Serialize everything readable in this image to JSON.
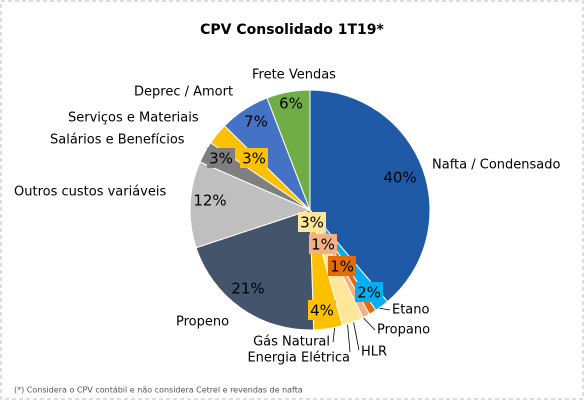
{
  "chart_data": {
    "type": "pie",
    "title": "CPV Consolidado 1T19*",
    "categories": [
      "Nafta / Condensado",
      "Etano",
      "Propano",
      "HLR",
      "Energia Elétrica",
      "Gás Natural",
      "Propeno",
      "Outros custos variáveis",
      "Salários e Benefícios",
      "Serviços e Materiais",
      "Deprec / Amort",
      "Frete Vendas"
    ],
    "values": [
      40,
      2,
      1,
      1,
      3,
      4,
      21,
      12,
      3,
      3,
      7,
      6
    ],
    "value_labels": [
      "40%",
      "2%",
      "1%",
      "1%",
      "3%",
      "4%",
      "21%",
      "12%",
      "3%",
      "3%",
      "7%",
      "6%"
    ],
    "colors": [
      "#1F5AA6",
      "#00B0F0",
      "#E36C09",
      "#F4B183",
      "#FFE699",
      "#FFC000",
      "#44546A",
      "#BFBFBF",
      "#7F7F7F",
      "#FFC000",
      "#4472C4",
      "#70AD47"
    ],
    "footnote": "(*) Considera o CPV contábil e não considera Cetrel e revendas de nafta"
  }
}
